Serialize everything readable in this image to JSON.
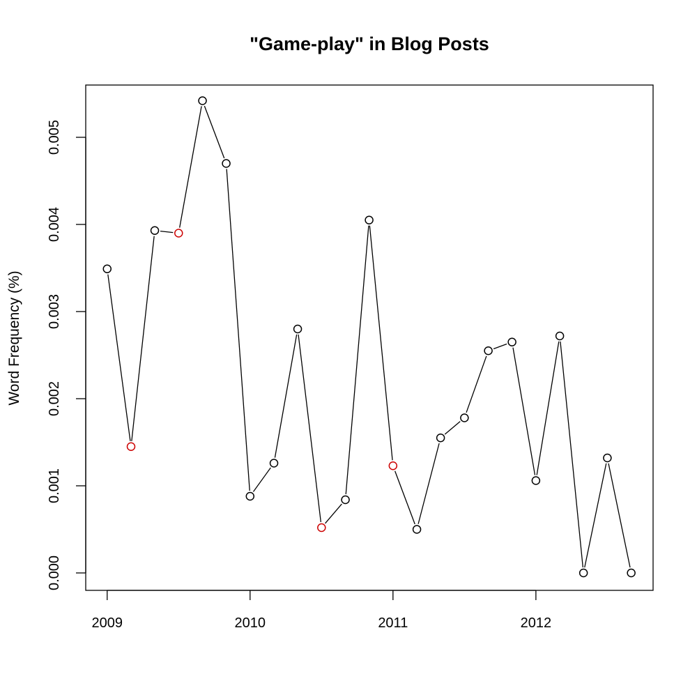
{
  "chart_data": {
    "type": "line",
    "title": "\"Game-play\" in Blog Posts",
    "xlabel": "",
    "ylabel": "Word Frequency (%)",
    "xlim": [
      2008.85,
      2012.82
    ],
    "ylim": [
      -0.0002,
      0.0056
    ],
    "x_ticks": [
      2009,
      2010,
      2011,
      2012
    ],
    "x_tick_labels": [
      "2009",
      "2010",
      "2011",
      "2012"
    ],
    "y_ticks": [
      0,
      0.001,
      0.002,
      0.003,
      0.004,
      0.005
    ],
    "y_tick_labels": [
      "0.000",
      "0.001",
      "0.002",
      "0.003",
      "0.004",
      "0.005"
    ],
    "grid": false,
    "legend": "none",
    "colors": {
      "line": "#000000",
      "point": "#000000",
      "highlight": "#cc0000"
    },
    "series": [
      {
        "x": [
          2009.0,
          2009.167,
          2009.333,
          2009.5,
          2009.667,
          2009.833,
          2010.0,
          2010.167,
          2010.333,
          2010.5,
          2010.667,
          2010.833,
          2011.0,
          2011.167,
          2011.333,
          2011.5,
          2011.667,
          2011.833,
          2012.0,
          2012.167,
          2012.333,
          2012.5,
          2012.667
        ],
        "y": [
          0.00349,
          0.00145,
          0.00393,
          0.0039,
          0.00542,
          0.0047,
          0.00088,
          0.00126,
          0.0028,
          0.00052,
          0.00084,
          0.00405,
          0.00123,
          0.0005,
          0.00155,
          0.00178,
          0.00255,
          0.00265,
          0.00106,
          0.00272,
          0.0,
          0.00132,
          0.0
        ],
        "highlight": [
          false,
          true,
          false,
          true,
          false,
          false,
          false,
          false,
          false,
          true,
          false,
          false,
          true,
          false,
          false,
          false,
          false,
          false,
          false,
          false,
          false,
          false,
          false
        ]
      }
    ]
  }
}
